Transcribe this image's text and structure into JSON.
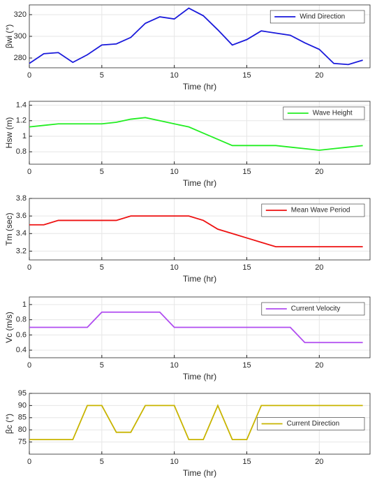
{
  "chart_data": [
    {
      "type": "line",
      "xlabel": "Time (hr)",
      "ylabel": "βwi (°)",
      "legend": "upper right",
      "grid": true,
      "x": [
        0,
        1,
        2,
        3,
        4,
        5,
        6,
        7,
        8,
        9,
        10,
        11,
        12,
        13,
        14,
        15,
        16,
        17,
        18,
        19,
        20,
        21,
        22,
        23
      ],
      "xlim": [
        0,
        23.5
      ],
      "xticks": [
        0,
        5,
        10,
        15,
        20
      ],
      "ylim": [
        271,
        329
      ],
      "yticks": [
        280,
        300,
        320
      ],
      "series": [
        {
          "name": "Wind Direction",
          "color": "#1a1adb",
          "values": [
            275,
            284,
            285,
            276,
            283,
            292,
            293,
            299,
            312,
            318,
            316,
            326,
            319,
            306,
            292,
            297,
            305,
            303,
            301,
            294,
            288,
            275,
            274,
            278
          ]
        }
      ]
    },
    {
      "type": "line",
      "xlabel": "Time (hr)",
      "ylabel": "Hsw (m)",
      "legend": "upper right",
      "grid": true,
      "x": [
        0,
        1,
        2,
        3,
        4,
        5,
        6,
        7,
        8,
        9,
        10,
        11,
        12,
        13,
        14,
        15,
        16,
        17,
        18,
        19,
        20,
        21,
        22,
        23
      ],
      "xlim": [
        0,
        23.5
      ],
      "xticks": [
        0,
        5,
        10,
        15,
        20
      ],
      "ylim": [
        0.64,
        1.45
      ],
      "yticks": [
        0.8,
        1,
        1.2,
        1.4
      ],
      "series": [
        {
          "name": "Wave Height",
          "color": "#22ee22",
          "values": [
            1.12,
            1.14,
            1.16,
            1.16,
            1.16,
            1.16,
            1.18,
            1.22,
            1.24,
            1.2,
            1.16,
            1.12,
            1.04,
            0.96,
            0.88,
            0.88,
            0.88,
            0.88,
            0.86,
            0.84,
            0.82,
            0.84,
            0.86,
            0.88
          ]
        }
      ]
    },
    {
      "type": "line",
      "xlabel": "Time (hr)",
      "ylabel": "Tm (sec)",
      "legend": "upper right",
      "grid": true,
      "x": [
        0,
        1,
        2,
        3,
        4,
        5,
        6,
        7,
        8,
        9,
        10,
        11,
        12,
        13,
        14,
        15,
        16,
        17,
        18,
        19,
        20,
        21,
        22,
        23
      ],
      "xlim": [
        0,
        23.5
      ],
      "xticks": [
        0,
        5,
        10,
        15,
        20
      ],
      "ylim": [
        3.1,
        3.8
      ],
      "yticks": [
        3.2,
        3.4,
        3.6,
        3.8
      ],
      "series": [
        {
          "name": "Mean Wave Period",
          "color": "#ee1111",
          "values": [
            3.5,
            3.5,
            3.55,
            3.55,
            3.55,
            3.55,
            3.55,
            3.6,
            3.6,
            3.6,
            3.6,
            3.6,
            3.55,
            3.45,
            3.4,
            3.35,
            3.3,
            3.25,
            3.25,
            3.25,
            3.25,
            3.25,
            3.25,
            3.25
          ]
        }
      ]
    },
    {
      "type": "line",
      "xlabel": "Time (hr)",
      "ylabel": "Vc  (m/s)",
      "legend": "upper right",
      "grid": true,
      "x": [
        0,
        1,
        2,
        3,
        4,
        5,
        6,
        7,
        8,
        9,
        10,
        11,
        12,
        13,
        14,
        15,
        16,
        17,
        18,
        19,
        20,
        21,
        22,
        23
      ],
      "xlim": [
        0,
        23.5
      ],
      "xticks": [
        0,
        5,
        10,
        15,
        20
      ],
      "ylim": [
        0.3,
        1.1
      ],
      "yticks": [
        0.4,
        0.6,
        0.8,
        1
      ],
      "series": [
        {
          "name": "Current Velocity",
          "color": "#b04cf0",
          "values": [
            0.7,
            0.7,
            0.7,
            0.7,
            0.7,
            0.9,
            0.9,
            0.9,
            0.9,
            0.9,
            0.7,
            0.7,
            0.7,
            0.7,
            0.7,
            0.7,
            0.7,
            0.7,
            0.7,
            0.5,
            0.5,
            0.5,
            0.5,
            0.5
          ]
        }
      ]
    },
    {
      "type": "line",
      "xlabel": "Time (hr)",
      "ylabel": "βc (°)",
      "legend": "right",
      "grid": true,
      "x": [
        0,
        1,
        2,
        3,
        4,
        5,
        6,
        7,
        8,
        9,
        10,
        11,
        12,
        13,
        14,
        15,
        16,
        17,
        18,
        19,
        20,
        21,
        22,
        23
      ],
      "xlim": [
        0,
        23.5
      ],
      "xticks": [
        0,
        5,
        10,
        15,
        20
      ],
      "ylim": [
        70,
        95
      ],
      "yticks": [
        75,
        80,
        85,
        90,
        95
      ],
      "series": [
        {
          "name": "Current Direction",
          "color": "#c8b400",
          "values": [
            76,
            76,
            76,
            76,
            90,
            90,
            79,
            79,
            90,
            90,
            90,
            76,
            76,
            90,
            76,
            76,
            90,
            90,
            90,
            90,
            90,
            90,
            90,
            90
          ]
        }
      ]
    }
  ]
}
